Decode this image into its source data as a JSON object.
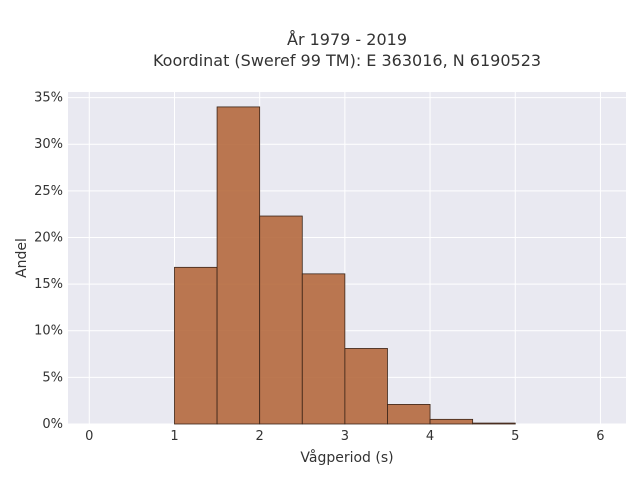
{
  "chart_data": {
    "type": "bar",
    "title_lines": [
      "År 1979 - 2019",
      "Koordinat (Sweref 99 TM): E 363016, N 6190523"
    ],
    "xlabel": "Vågperiod (s)",
    "ylabel": "Andel",
    "xlim": [
      -0.25,
      6.3
    ],
    "ylim": [
      0,
      35.6
    ],
    "x_ticks": [
      0,
      1,
      2,
      3,
      4,
      5,
      6
    ],
    "x_tick_labels": [
      "0",
      "1",
      "2",
      "3",
      "4",
      "5",
      "6"
    ],
    "y_ticks": [
      0,
      5,
      10,
      15,
      20,
      25,
      30,
      35
    ],
    "y_tick_labels": [
      "0%",
      "5%",
      "10%",
      "15%",
      "20%",
      "25%",
      "30%",
      "35%"
    ],
    "bin_width": 0.5,
    "bins": [
      {
        "x_start": 1.0,
        "x_end": 1.5,
        "value": 16.8
      },
      {
        "x_start": 1.5,
        "x_end": 2.0,
        "value": 34.0
      },
      {
        "x_start": 2.0,
        "x_end": 2.5,
        "value": 22.3
      },
      {
        "x_start": 2.5,
        "x_end": 3.0,
        "value": 16.1
      },
      {
        "x_start": 3.0,
        "x_end": 3.5,
        "value": 8.1
      },
      {
        "x_start": 3.5,
        "x_end": 4.0,
        "value": 2.1
      },
      {
        "x_start": 4.0,
        "x_end": 4.5,
        "value": 0.5
      },
      {
        "x_start": 4.5,
        "x_end": 5.0,
        "value": 0.1
      }
    ],
    "grid": true,
    "legend": "none",
    "colors": {
      "bar_fill": "#b5693e",
      "bar_stroke": "#3a2418",
      "plot_bg": "#e9e9f1",
      "grid": "#ffffff"
    }
  }
}
